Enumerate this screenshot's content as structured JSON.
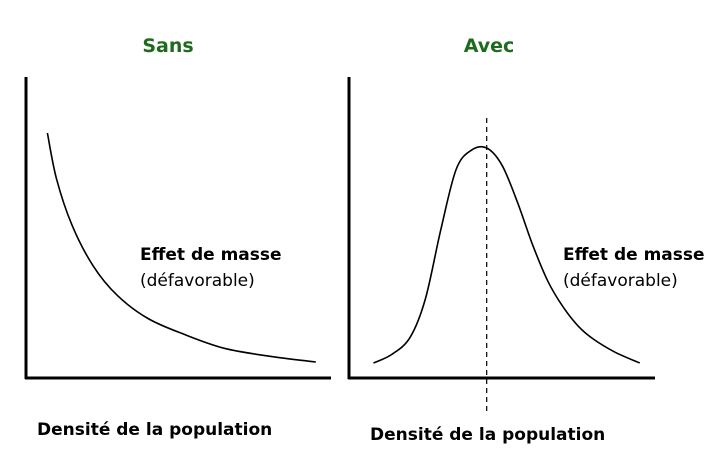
{
  "colors": {
    "title": "#1e6b1e",
    "axis": "#000000",
    "curve": "#000000"
  },
  "chart_data": [
    {
      "type": "line",
      "title": "Sans",
      "xlabel": "Densité de la population",
      "ylabel": "Effet de masse",
      "ylabel_note": "(défavorable)",
      "xlim": [
        0,
        100
      ],
      "ylim": [
        0,
        100
      ],
      "grid": false,
      "axis_ticks": false,
      "series": [
        {
          "x": [
            7,
            10,
            15,
            22,
            30,
            40,
            52,
            65,
            80,
            95
          ],
          "y": [
            100,
            80,
            60,
            42,
            29,
            19,
            12,
            6,
            2.5,
            0
          ]
        }
      ]
    },
    {
      "type": "line",
      "title": "Avec",
      "xlabel": "Densité de la population",
      "ylabel": "Effet de masse",
      "ylabel_note": "(défavorable)",
      "xlim": [
        0,
        100
      ],
      "ylim": [
        0,
        100
      ],
      "grid": false,
      "axis_ticks": false,
      "peak_marker_x": 45,
      "series": [
        {
          "x": [
            8,
            14,
            20,
            25,
            30,
            35,
            40,
            45,
            50,
            55,
            60,
            65,
            70,
            75,
            80,
            87,
            95
          ],
          "y": [
            0,
            4,
            12,
            30,
            62,
            90,
            99,
            100,
            92,
            75,
            55,
            38,
            26,
            17,
            11,
            5,
            0
          ]
        }
      ]
    }
  ]
}
